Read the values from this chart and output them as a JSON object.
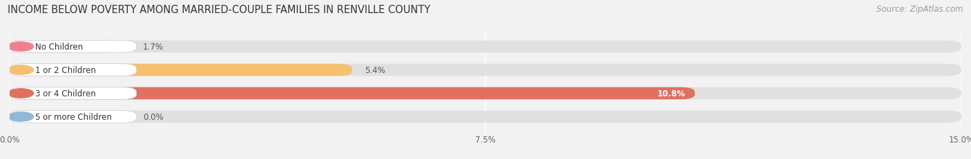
{
  "title": "INCOME BELOW POVERTY AMONG MARRIED-COUPLE FAMILIES IN RENVILLE COUNTY",
  "source": "Source: ZipAtlas.com",
  "categories": [
    "No Children",
    "1 or 2 Children",
    "3 or 4 Children",
    "5 or more Children"
  ],
  "values": [
    1.7,
    5.4,
    10.8,
    0.0
  ],
  "bar_colors": [
    "#f08090",
    "#f5c070",
    "#e07060",
    "#90b8d8"
  ],
  "xlim": [
    0,
    15.0
  ],
  "xticks": [
    0.0,
    7.5,
    15.0
  ],
  "xtick_labels": [
    "0.0%",
    "7.5%",
    "15.0%"
  ],
  "background_color": "#f2f2f2",
  "title_fontsize": 10.5,
  "source_fontsize": 8.5,
  "bar_label_fontsize": 8.5,
  "category_fontsize": 8.5,
  "bar_height": 0.52,
  "value_inside_threshold": 8.0
}
